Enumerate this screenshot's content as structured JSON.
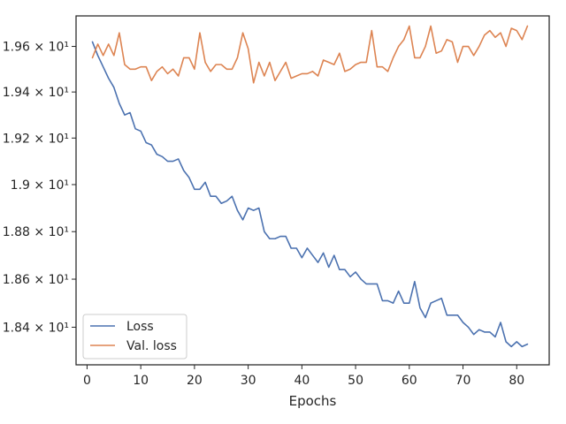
{
  "chart_data": {
    "type": "line",
    "title": "",
    "xlabel": "Epochs",
    "ylabel": "",
    "xlim": [
      -2.05,
      86.05
    ],
    "ylim": [
      18.245,
      19.735
    ],
    "y_scale": "log",
    "grid": false,
    "legend_position": "bottom-left",
    "x_ticks": [
      {
        "value": 0,
        "label": "0"
      },
      {
        "value": 10,
        "label": "10"
      },
      {
        "value": 20,
        "label": "20"
      },
      {
        "value": 30,
        "label": "30"
      },
      {
        "value": 40,
        "label": "40"
      },
      {
        "value": 50,
        "label": "50"
      },
      {
        "value": 60,
        "label": "60"
      },
      {
        "value": 70,
        "label": "70"
      },
      {
        "value": 80,
        "label": "80"
      }
    ],
    "y_ticks": [
      {
        "value": 18.4,
        "label": "1.84 × 10¹"
      },
      {
        "value": 18.6,
        "label": "1.86 × 10¹"
      },
      {
        "value": 18.8,
        "label": "1.88 × 10¹"
      },
      {
        "value": 19.0,
        "label": "1.9 × 10¹"
      },
      {
        "value": 19.2,
        "label": "1.92 × 10¹"
      },
      {
        "value": 19.4,
        "label": "1.94 × 10¹"
      },
      {
        "value": 19.6,
        "label": "1.96 × 10¹"
      }
    ],
    "series": [
      {
        "name": "Loss",
        "color": "#4c72b0",
        "x": [
          1,
          2,
          3,
          4,
          5,
          6,
          7,
          8,
          9,
          10,
          11,
          12,
          13,
          14,
          15,
          16,
          17,
          18,
          19,
          20,
          21,
          22,
          23,
          24,
          25,
          26,
          27,
          28,
          29,
          30,
          31,
          32,
          33,
          34,
          35,
          36,
          37,
          38,
          39,
          40,
          41,
          42,
          43,
          44,
          45,
          46,
          47,
          48,
          49,
          50,
          51,
          52,
          53,
          54,
          55,
          56,
          57,
          58,
          59,
          60,
          61,
          62,
          63,
          64,
          65,
          66,
          67,
          68,
          69,
          70,
          71,
          72,
          73,
          74,
          75,
          76,
          77,
          78,
          79,
          80,
          81,
          82
        ],
        "values": [
          19.62,
          19.56,
          19.51,
          19.46,
          19.42,
          19.35,
          19.3,
          19.31,
          19.24,
          19.23,
          19.18,
          19.17,
          19.13,
          19.12,
          19.1,
          19.1,
          19.11,
          19.06,
          19.03,
          18.98,
          18.98,
          19.01,
          18.95,
          18.95,
          18.92,
          18.93,
          18.95,
          18.89,
          18.85,
          18.9,
          18.89,
          18.9,
          18.8,
          18.77,
          18.77,
          18.78,
          18.78,
          18.73,
          18.73,
          18.69,
          18.73,
          18.7,
          18.67,
          18.71,
          18.65,
          18.7,
          18.64,
          18.64,
          18.61,
          18.63,
          18.6,
          18.58,
          18.58,
          18.58,
          18.51,
          18.51,
          18.5,
          18.55,
          18.5,
          18.5,
          18.59,
          18.48,
          18.44,
          18.5,
          18.51,
          18.52,
          18.45,
          18.45,
          18.45,
          18.42,
          18.4,
          18.37,
          18.39,
          18.38,
          18.38,
          18.36,
          18.42,
          18.34,
          18.32,
          18.34,
          18.32,
          18.33
        ]
      },
      {
        "name": "Val. loss",
        "color": "#dd8452",
        "x": [
          1,
          2,
          3,
          4,
          5,
          6,
          7,
          8,
          9,
          10,
          11,
          12,
          13,
          14,
          15,
          16,
          17,
          18,
          19,
          20,
          21,
          22,
          23,
          24,
          25,
          26,
          27,
          28,
          29,
          30,
          31,
          32,
          33,
          34,
          35,
          36,
          37,
          38,
          39,
          40,
          41,
          42,
          43,
          44,
          45,
          46,
          47,
          48,
          49,
          50,
          51,
          52,
          53,
          54,
          55,
          56,
          57,
          58,
          59,
          60,
          61,
          62,
          63,
          64,
          65,
          66,
          67,
          68,
          69,
          70,
          71,
          72,
          73,
          74,
          75,
          76,
          77,
          78,
          79,
          80,
          81,
          82
        ],
        "values": [
          19.55,
          19.61,
          19.56,
          19.61,
          19.56,
          19.66,
          19.52,
          19.5,
          19.5,
          19.51,
          19.51,
          19.45,
          19.49,
          19.51,
          19.48,
          19.5,
          19.47,
          19.55,
          19.55,
          19.5,
          19.66,
          19.53,
          19.49,
          19.52,
          19.52,
          19.5,
          19.5,
          19.55,
          19.66,
          19.59,
          19.44,
          19.53,
          19.47,
          19.53,
          19.45,
          19.49,
          19.53,
          19.46,
          19.47,
          19.48,
          19.48,
          19.49,
          19.47,
          19.54,
          19.53,
          19.52,
          19.57,
          19.49,
          19.5,
          19.52,
          19.53,
          19.53,
          19.67,
          19.51,
          19.51,
          19.49,
          19.55,
          19.6,
          19.63,
          19.69,
          19.55,
          19.55,
          19.6,
          19.69,
          19.57,
          19.58,
          19.63,
          19.62,
          19.53,
          19.6,
          19.6,
          19.56,
          19.6,
          19.65,
          19.67,
          19.64,
          19.66,
          19.6,
          19.68,
          19.67,
          19.63,
          19.69
        ]
      }
    ]
  }
}
